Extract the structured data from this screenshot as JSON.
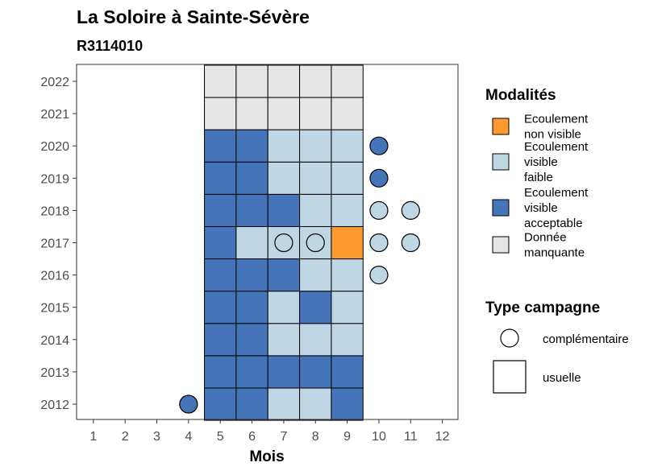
{
  "chart_data": {
    "type": "heatmap",
    "title": "La Soloire à Sainte-Sévère",
    "subtitle": "R3114010",
    "xlabel": "Mois",
    "ylabel": "",
    "x_ticks": [
      "1",
      "2",
      "3",
      "4",
      "5",
      "6",
      "7",
      "8",
      "9",
      "10",
      "11",
      "12"
    ],
    "y_ticks": [
      "2012",
      "2013",
      "2014",
      "2015",
      "2016",
      "2017",
      "2018",
      "2019",
      "2020",
      "2021",
      "2022"
    ],
    "grid": false,
    "legend_placement": "right",
    "colors": {
      "Ecoulement non visible": "#fd9a2f",
      "Ecoulement visible faible": "#bfd6e5",
      "Ecoulement visible acceptable": "#4574b8",
      "Donnée manquante": "#e5e5e5"
    },
    "legend_modalites": {
      "title": "Modalités",
      "items": [
        {
          "key": "Ecoulement non visible",
          "lines": [
            "Ecoulement",
            "non visible"
          ]
        },
        {
          "key": "Ecoulement visible faible",
          "lines": [
            "Ecoulement",
            "visible",
            "faible"
          ]
        },
        {
          "key": "Ecoulement visible acceptable",
          "lines": [
            "Ecoulement",
            "visible",
            "acceptable"
          ]
        },
        {
          "key": "Donnée manquante",
          "lines": [
            "Donnée",
            "manquante"
          ]
        }
      ]
    },
    "legend_campagne": {
      "title": "Type campagne",
      "items": [
        {
          "shape": "circle",
          "label": "complémentaire"
        },
        {
          "shape": "square",
          "label": "usuelle"
        }
      ]
    },
    "usuelle": [
      {
        "year": 2012,
        "month": 5,
        "value": "Ecoulement visible acceptable"
      },
      {
        "year": 2012,
        "month": 6,
        "value": "Ecoulement visible acceptable"
      },
      {
        "year": 2012,
        "month": 7,
        "value": "Ecoulement visible faible"
      },
      {
        "year": 2012,
        "month": 8,
        "value": "Ecoulement visible faible"
      },
      {
        "year": 2012,
        "month": 9,
        "value": "Ecoulement visible acceptable"
      },
      {
        "year": 2013,
        "month": 5,
        "value": "Ecoulement visible acceptable"
      },
      {
        "year": 2013,
        "month": 6,
        "value": "Ecoulement visible acceptable"
      },
      {
        "year": 2013,
        "month": 7,
        "value": "Ecoulement visible acceptable"
      },
      {
        "year": 2013,
        "month": 8,
        "value": "Ecoulement visible acceptable"
      },
      {
        "year": 2013,
        "month": 9,
        "value": "Ecoulement visible acceptable"
      },
      {
        "year": 2014,
        "month": 5,
        "value": "Ecoulement visible acceptable"
      },
      {
        "year": 2014,
        "month": 6,
        "value": "Ecoulement visible acceptable"
      },
      {
        "year": 2014,
        "month": 7,
        "value": "Ecoulement visible faible"
      },
      {
        "year": 2014,
        "month": 8,
        "value": "Ecoulement visible faible"
      },
      {
        "year": 2014,
        "month": 9,
        "value": "Ecoulement visible faible"
      },
      {
        "year": 2015,
        "month": 5,
        "value": "Ecoulement visible acceptable"
      },
      {
        "year": 2015,
        "month": 6,
        "value": "Ecoulement visible acceptable"
      },
      {
        "year": 2015,
        "month": 7,
        "value": "Ecoulement visible faible"
      },
      {
        "year": 2015,
        "month": 8,
        "value": "Ecoulement visible acceptable"
      },
      {
        "year": 2015,
        "month": 9,
        "value": "Ecoulement visible faible"
      },
      {
        "year": 2016,
        "month": 5,
        "value": "Ecoulement visible acceptable"
      },
      {
        "year": 2016,
        "month": 6,
        "value": "Ecoulement visible acceptable"
      },
      {
        "year": 2016,
        "month": 7,
        "value": "Ecoulement visible acceptable"
      },
      {
        "year": 2016,
        "month": 8,
        "value": "Ecoulement visible faible"
      },
      {
        "year": 2016,
        "month": 9,
        "value": "Ecoulement visible faible"
      },
      {
        "year": 2017,
        "month": 5,
        "value": "Ecoulement visible acceptable"
      },
      {
        "year": 2017,
        "month": 6,
        "value": "Ecoulement visible faible"
      },
      {
        "year": 2017,
        "month": 7,
        "value": "Ecoulement visible faible"
      },
      {
        "year": 2017,
        "month": 8,
        "value": "Ecoulement visible faible"
      },
      {
        "year": 2017,
        "month": 9,
        "value": "Ecoulement non visible"
      },
      {
        "year": 2018,
        "month": 5,
        "value": "Ecoulement visible acceptable"
      },
      {
        "year": 2018,
        "month": 6,
        "value": "Ecoulement visible acceptable"
      },
      {
        "year": 2018,
        "month": 7,
        "value": "Ecoulement visible acceptable"
      },
      {
        "year": 2018,
        "month": 8,
        "value": "Ecoulement visible faible"
      },
      {
        "year": 2018,
        "month": 9,
        "value": "Ecoulement visible faible"
      },
      {
        "year": 2019,
        "month": 5,
        "value": "Ecoulement visible acceptable"
      },
      {
        "year": 2019,
        "month": 6,
        "value": "Ecoulement visible acceptable"
      },
      {
        "year": 2019,
        "month": 7,
        "value": "Ecoulement visible faible"
      },
      {
        "year": 2019,
        "month": 8,
        "value": "Ecoulement visible faible"
      },
      {
        "year": 2019,
        "month": 9,
        "value": "Ecoulement visible faible"
      },
      {
        "year": 2020,
        "month": 5,
        "value": "Ecoulement visible acceptable"
      },
      {
        "year": 2020,
        "month": 6,
        "value": "Ecoulement visible acceptable"
      },
      {
        "year": 2020,
        "month": 7,
        "value": "Ecoulement visible faible"
      },
      {
        "year": 2020,
        "month": 8,
        "value": "Ecoulement visible faible"
      },
      {
        "year": 2020,
        "month": 9,
        "value": "Ecoulement visible faible"
      },
      {
        "year": 2021,
        "month": 5,
        "value": "Donnée manquante"
      },
      {
        "year": 2021,
        "month": 6,
        "value": "Donnée manquante"
      },
      {
        "year": 2021,
        "month": 7,
        "value": "Donnée manquante"
      },
      {
        "year": 2021,
        "month": 8,
        "value": "Donnée manquante"
      },
      {
        "year": 2021,
        "month": 9,
        "value": "Donnée manquante"
      },
      {
        "year": 2022,
        "month": 5,
        "value": "Donnée manquante"
      },
      {
        "year": 2022,
        "month": 6,
        "value": "Donnée manquante"
      },
      {
        "year": 2022,
        "month": 7,
        "value": "Donnée manquante"
      },
      {
        "year": 2022,
        "month": 8,
        "value": "Donnée manquante"
      },
      {
        "year": 2022,
        "month": 9,
        "value": "Donnée manquante"
      }
    ],
    "complementaire": [
      {
        "year": 2012,
        "month": 4,
        "value": "Ecoulement visible acceptable"
      },
      {
        "year": 2016,
        "month": 10,
        "value": "Ecoulement visible faible"
      },
      {
        "year": 2017,
        "month": 7,
        "value": "Ecoulement visible faible"
      },
      {
        "year": 2017,
        "month": 8,
        "value": "Ecoulement visible faible"
      },
      {
        "year": 2017,
        "month": 10,
        "value": "Ecoulement visible faible"
      },
      {
        "year": 2017,
        "month": 11,
        "value": "Ecoulement visible faible"
      },
      {
        "year": 2018,
        "month": 10,
        "value": "Ecoulement visible faible"
      },
      {
        "year": 2018,
        "month": 11,
        "value": "Ecoulement visible faible"
      },
      {
        "year": 2019,
        "month": 10,
        "value": "Ecoulement visible acceptable"
      },
      {
        "year": 2020,
        "month": 10,
        "value": "Ecoulement visible acceptable"
      }
    ]
  }
}
